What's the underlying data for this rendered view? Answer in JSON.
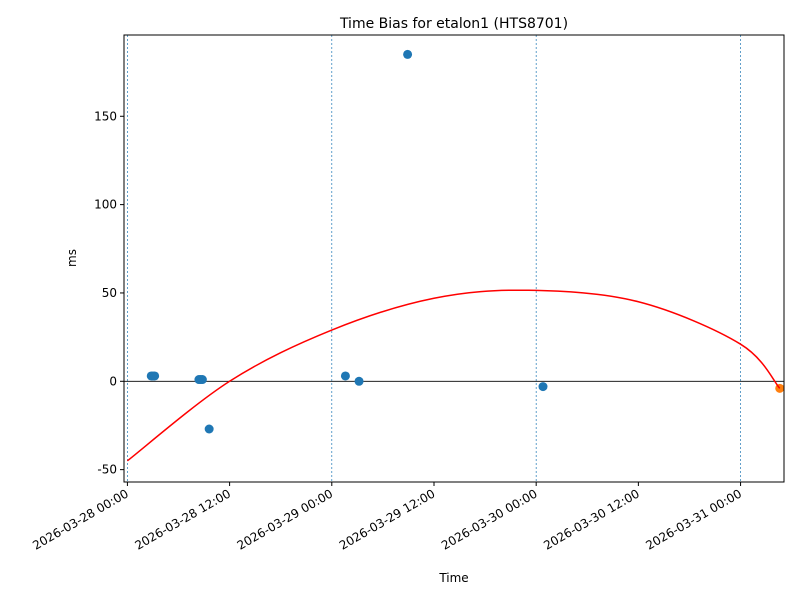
{
  "chart_data": {
    "type": "scatter",
    "title": "Time Bias for etalon1 (HTS8701)",
    "xlabel": "Time",
    "ylabel": "ms",
    "xlim": [
      "2026-03-27 23:36",
      "2026-03-31 05:06"
    ],
    "ylim": [
      -57,
      196
    ],
    "x_ticks": [
      {
        "value": "2026-03-28 00:00",
        "label": "2026-03-28 00:00"
      },
      {
        "value": "2026-03-28 12:00",
        "label": "2026-03-28 12:00"
      },
      {
        "value": "2026-03-29 00:00",
        "label": "2026-03-29 00:00"
      },
      {
        "value": "2026-03-29 12:00",
        "label": "2026-03-29 12:00"
      },
      {
        "value": "2026-03-30 00:00",
        "label": "2026-03-30 00:00"
      },
      {
        "value": "2026-03-30 12:00",
        "label": "2026-03-30 12:00"
      },
      {
        "value": "2026-03-31 00:00",
        "label": "2026-03-31 00:00"
      }
    ],
    "y_ticks": [
      -50,
      0,
      50,
      100,
      150
    ],
    "vertical_lines": [
      "2026-03-28 00:00",
      "2026-03-29 00:00",
      "2026-03-30 00:00",
      "2026-03-31 00:00"
    ],
    "zero_line": 0,
    "grid": false,
    "series": [
      {
        "color": "#1f77b4",
        "kind": "scatter",
        "points": [
          {
            "x": "2026-03-28 02:48",
            "y": 3
          },
          {
            "x": "2026-03-28 03:00",
            "y": 3
          },
          {
            "x": "2026-03-28 03:12",
            "y": 3
          },
          {
            "x": "2026-03-28 08:24",
            "y": 1
          },
          {
            "x": "2026-03-28 08:36",
            "y": 1
          },
          {
            "x": "2026-03-28 08:48",
            "y": 1
          },
          {
            "x": "2026-03-28 09:36",
            "y": -27
          },
          {
            "x": "2026-03-29 01:36",
            "y": 3
          },
          {
            "x": "2026-03-29 03:12",
            "y": 0
          },
          {
            "x": "2026-03-29 08:54",
            "y": 185
          },
          {
            "x": "2026-03-30 00:48",
            "y": -3
          }
        ]
      },
      {
        "color": "#ff7f0e",
        "kind": "scatter",
        "points": [
          {
            "x": "2026-03-31 04:36",
            "y": -4
          }
        ]
      },
      {
        "color": "#ff0000",
        "kind": "line",
        "points": [
          {
            "x": "2026-03-28 00:00",
            "y": -45
          },
          {
            "x": "2026-03-28 12:00",
            "y": 0
          },
          {
            "x": "2026-03-29 00:00",
            "y": 29
          },
          {
            "x": "2026-03-29 12:00",
            "y": 47
          },
          {
            "x": "2026-03-29 23:06",
            "y": 51.5
          },
          {
            "x": "2026-03-30 12:00",
            "y": 45
          },
          {
            "x": "2026-03-31 00:00",
            "y": 21
          },
          {
            "x": "2026-03-31 04:36",
            "y": -4
          }
        ]
      }
    ]
  }
}
